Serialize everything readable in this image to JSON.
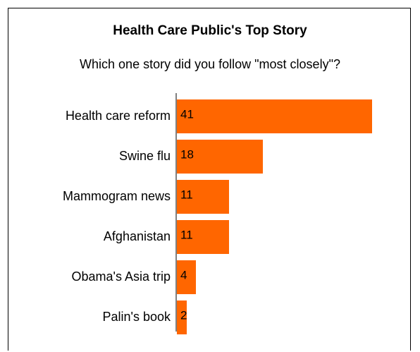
{
  "chart_data": {
    "type": "bar",
    "orientation": "horizontal",
    "title": "Health Care Public's Top Story",
    "subtitle": "Which one story did you follow \"most closely\"?",
    "categories": [
      "Health care reform",
      "Swine flu",
      "Mammogram news",
      "Afghanistan",
      "Obama's Asia trip",
      "Palin's book"
    ],
    "values": [
      41,
      18,
      11,
      11,
      4,
      2
    ],
    "value_labels": [
      "41",
      "18",
      "11",
      "11",
      "4",
      "2"
    ],
    "xlim": [
      0,
      41
    ],
    "grid": false,
    "legend": "none",
    "bar_color": "#ff6600"
  }
}
